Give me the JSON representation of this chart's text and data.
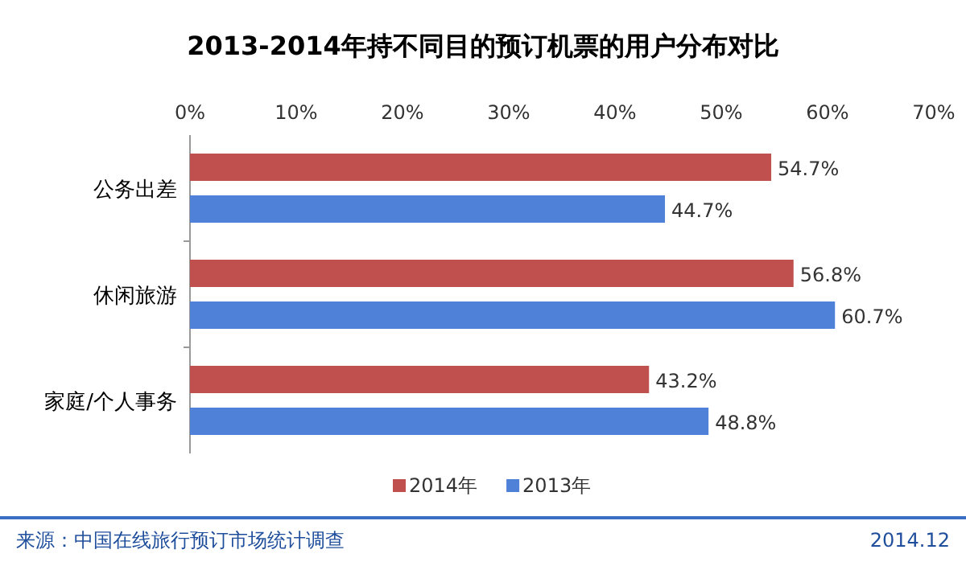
{
  "chart_data": {
    "type": "bar",
    "orientation": "horizontal",
    "title": "2013-2014年持不同目的预订机票的用户分布对比",
    "categories": [
      "公务出差",
      "休闲旅游",
      "家庭/个人事务"
    ],
    "series": [
      {
        "name": "2014年",
        "color": "#c0504d",
        "values": [
          54.7,
          56.8,
          43.2
        ],
        "value_labels": [
          "54.7%",
          "56.8%",
          "43.2%"
        ]
      },
      {
        "name": "2013年",
        "color": "#4f81d9",
        "values": [
          44.7,
          60.7,
          48.8
        ],
        "value_labels": [
          "44.7%",
          "60.7%",
          "48.8%"
        ]
      }
    ],
    "xlim": [
      0,
      70
    ],
    "xticks": [
      {
        "value": 0,
        "label": "0%"
      },
      {
        "value": 10,
        "label": "10%"
      },
      {
        "value": 20,
        "label": "20%"
      },
      {
        "value": 30,
        "label": "30%"
      },
      {
        "value": 40,
        "label": "40%"
      },
      {
        "value": 50,
        "label": "50%"
      },
      {
        "value": 60,
        "label": "60%"
      },
      {
        "value": 70,
        "label": "70%"
      }
    ],
    "grid": false,
    "legend": "bottom",
    "annotations": [
      "来源：中国在线旅行预订市场统计调查",
      "2014.12"
    ]
  }
}
